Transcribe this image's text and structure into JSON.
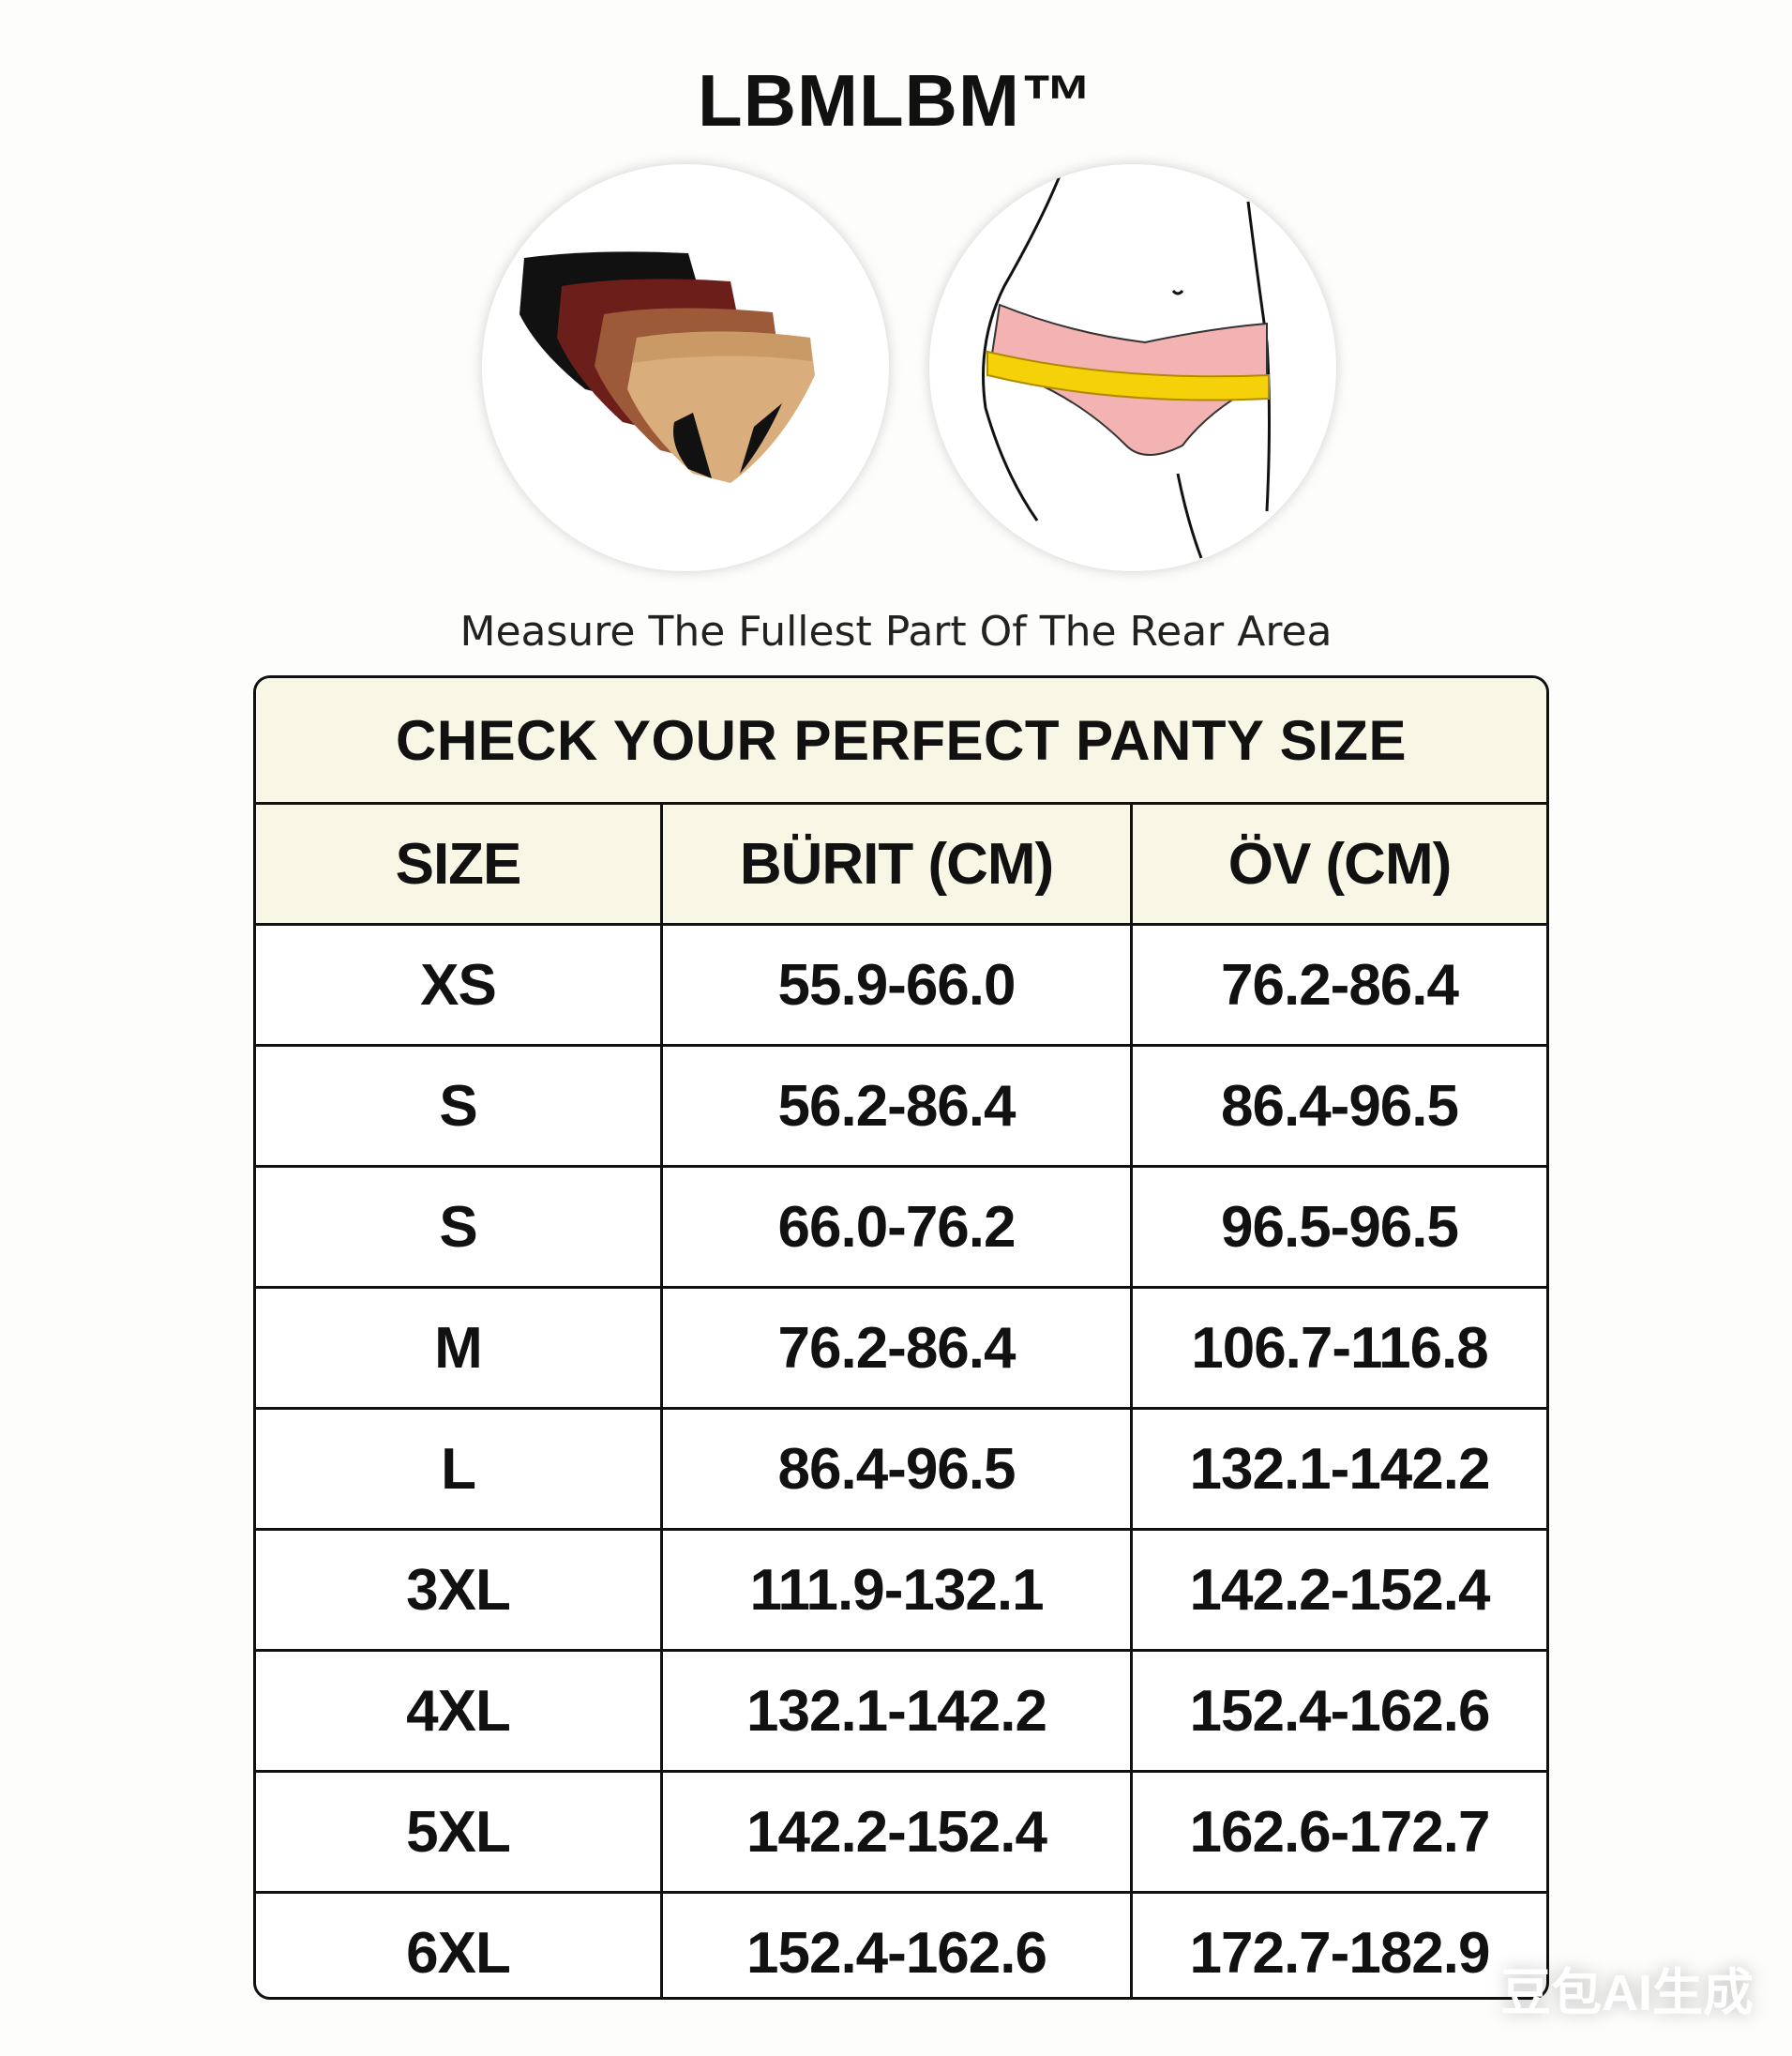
{
  "brand": "LBMLBM™",
  "images": {
    "left": "panties-stack-image",
    "right": "hip-measurement-illustration"
  },
  "caption": "Measure The Fullest Part Of The Rear Area",
  "table": {
    "title": "CHECK YOUR PERFECT PANTY SIZE",
    "headers": [
      "SIZE",
      "BÜRIT (CM)",
      "ÖV (CM)"
    ],
    "rows": [
      [
        "XS",
        "55.9-66.0",
        "76.2-86.4"
      ],
      [
        "S",
        "56.2-86.4",
        "86.4-96.5"
      ],
      [
        "S",
        "66.0-76.2",
        "96.5-96.5"
      ],
      [
        "M",
        "76.2-86.4",
        "106.7-116.8"
      ],
      [
        "L",
        "86.4-96.5",
        "132.1-142.2"
      ],
      [
        "3XL",
        "111.9-132.1",
        "142.2-152.4"
      ],
      [
        "4XL",
        "132.1-142.2",
        "152.4-162.6"
      ],
      [
        "5XL",
        "142.2-152.4",
        "162.6-172.7"
      ],
      [
        "6XL",
        "152.4-162.6",
        "172.7-182.9"
      ]
    ]
  },
  "watermark": "豆包AI生成",
  "colors": {
    "header_bg": "#f8f6e4",
    "tape": "#f5d10a",
    "brief_pink": "#f4b3b3"
  }
}
